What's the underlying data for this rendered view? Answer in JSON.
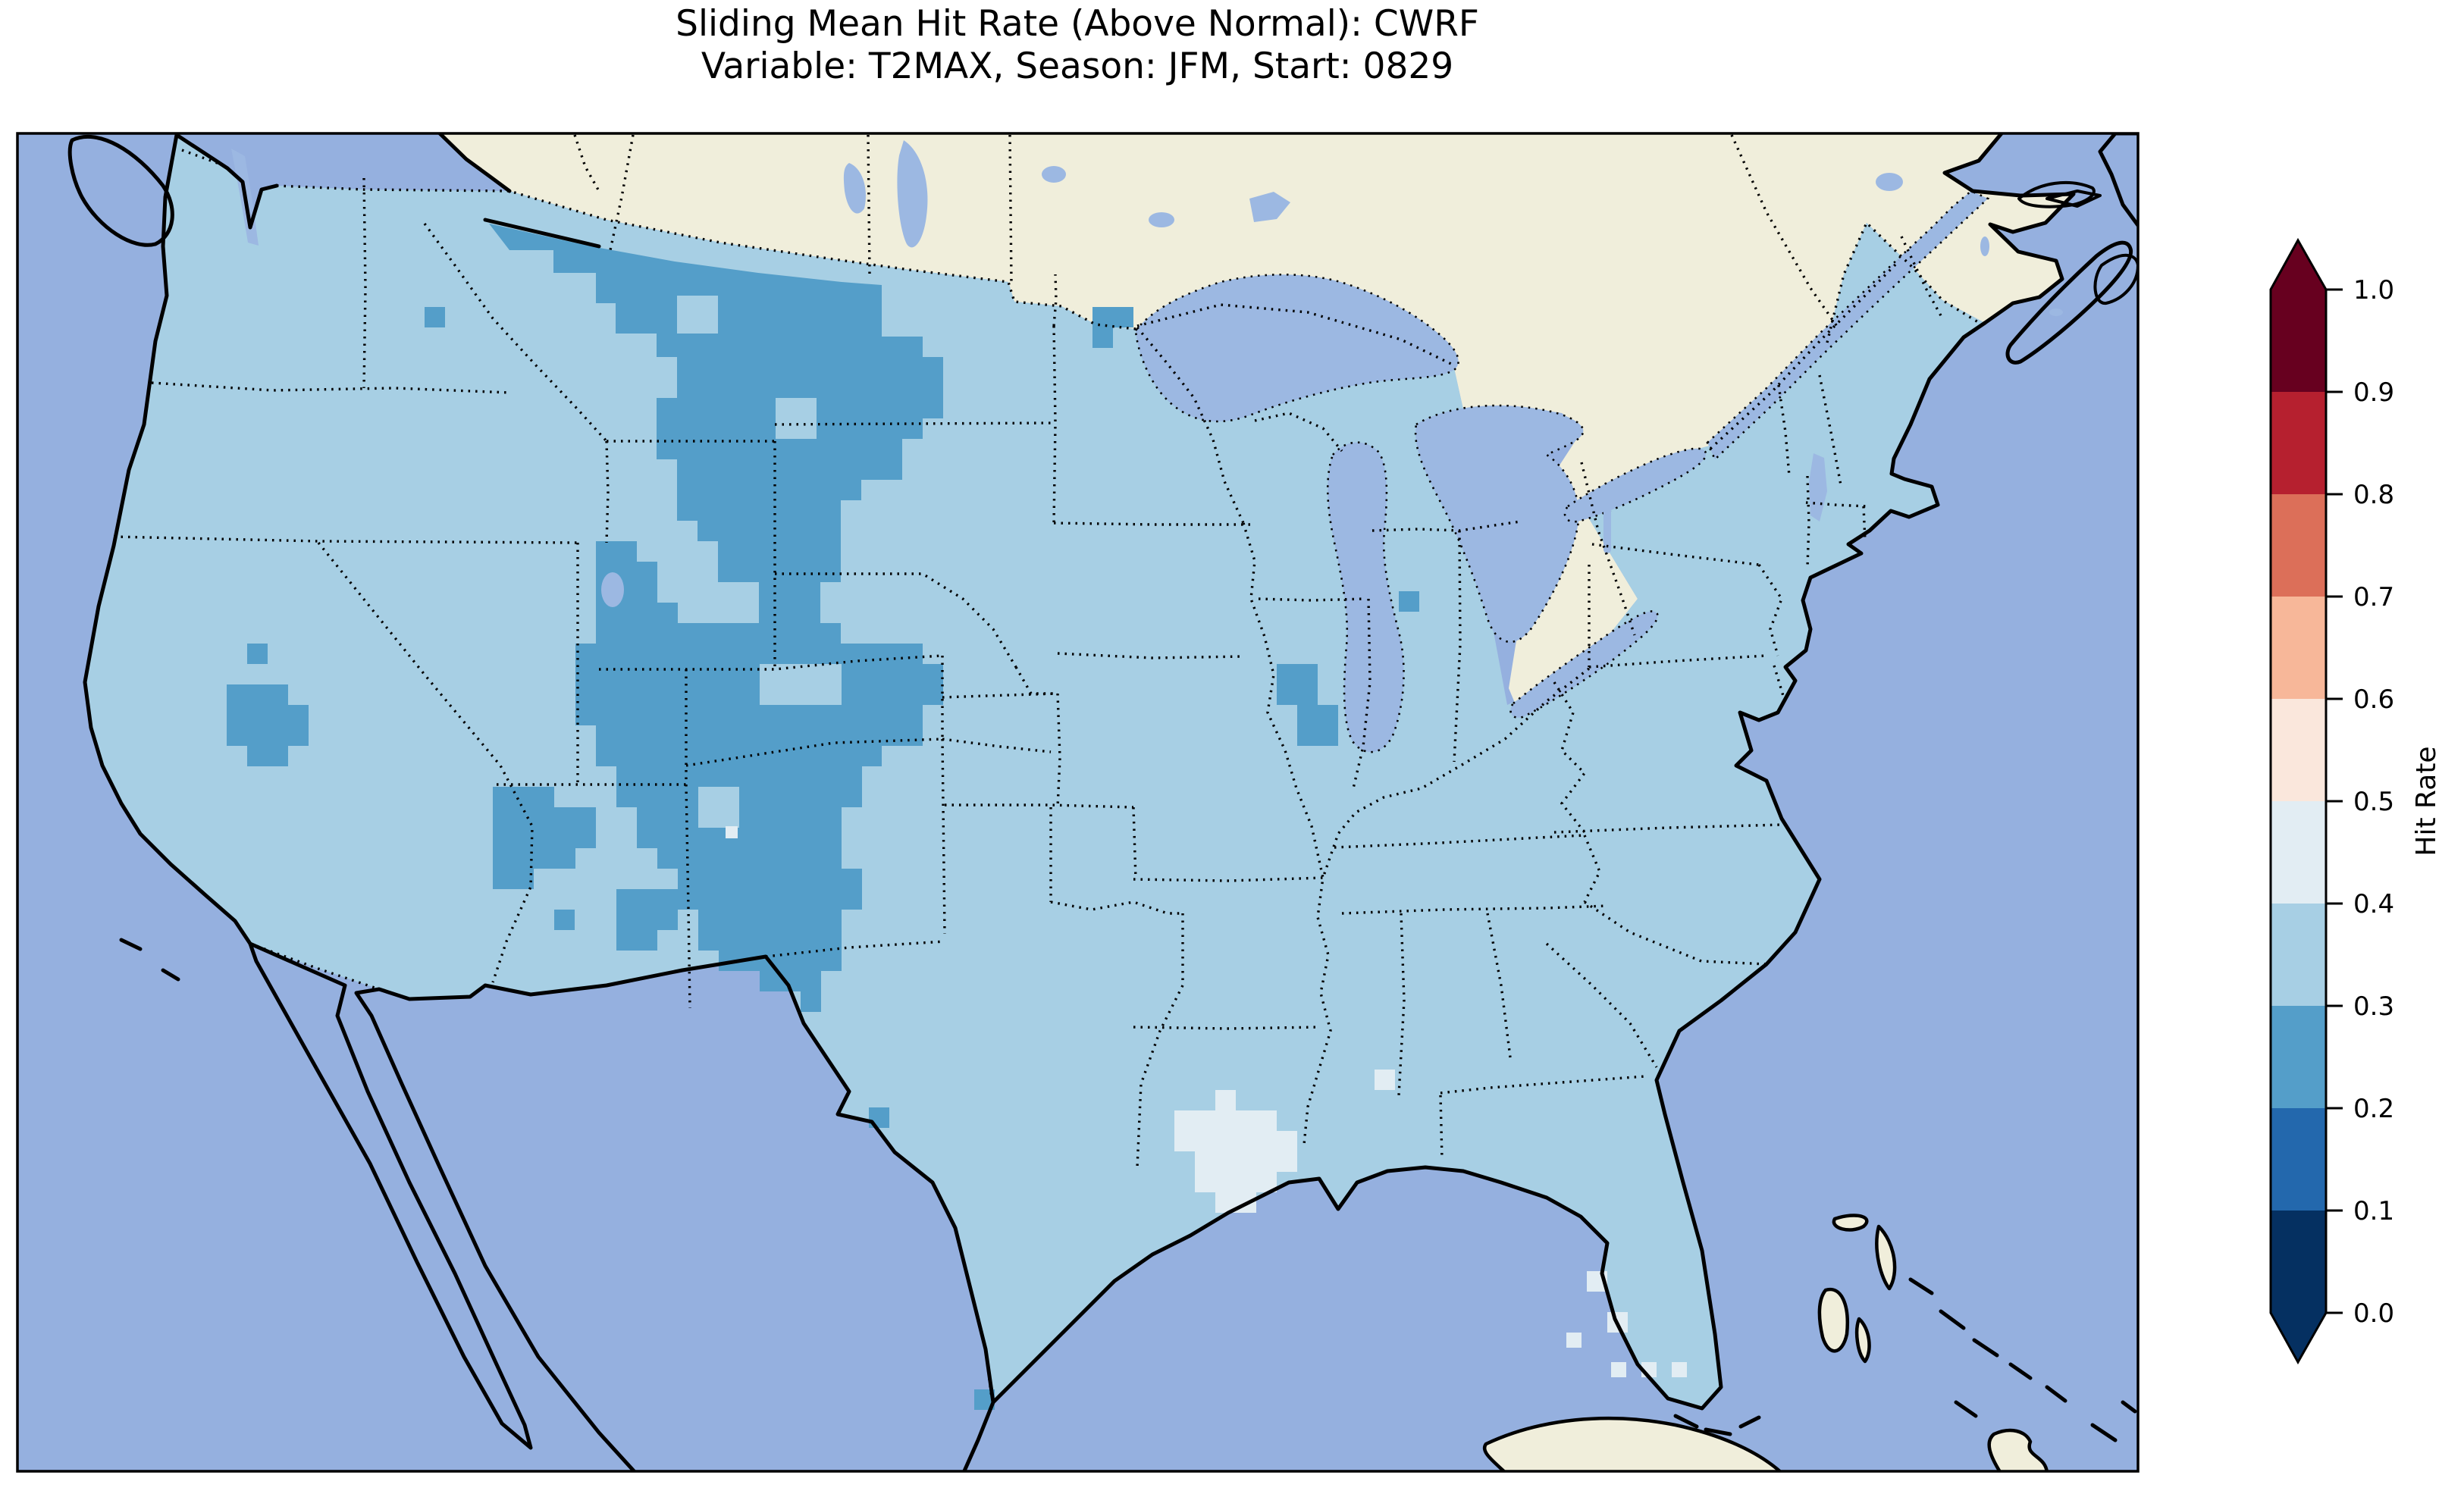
{
  "figure": {
    "title_line1": "Sliding Mean Hit Rate (Above Normal): CWRF",
    "title_line2": "Variable: T2MAX, Season: JFM, Start: 0829"
  },
  "colorbar": {
    "label": "Hit Rate",
    "ticks": [
      "0.0",
      "0.1",
      "0.2",
      "0.3",
      "0.4",
      "0.5",
      "0.6",
      "0.7",
      "0.8",
      "0.9",
      "1.0"
    ],
    "bins": [
      {
        "range": "0.0-0.1",
        "color": "#053061"
      },
      {
        "range": "0.1-0.2",
        "color": "#2368ad"
      },
      {
        "range": "0.2-0.3",
        "color": "#549ec9"
      },
      {
        "range": "0.3-0.4",
        "color": "#a7cfe4"
      },
      {
        "range": "0.4-0.5",
        "color": "#e2edf3"
      },
      {
        "range": "0.5-0.6",
        "color": "#fae7dc"
      },
      {
        "range": "0.6-0.7",
        "color": "#f7b799"
      },
      {
        "range": "0.7-0.8",
        "color": "#dc6f59"
      },
      {
        "range": "0.8-0.9",
        "color": "#b6202f"
      },
      {
        "range": "0.9-1.0",
        "color": "#67001f"
      }
    ],
    "extend": "both"
  },
  "palette": {
    "ocean": "#95b0df",
    "land": "#f0eedb",
    "lake": "#9cb8e2",
    "us_base": "#a7cfe4",
    "bin_low": "#549ec9",
    "bin_mid": "#e2edf3",
    "under": "#053061",
    "over": "#67001f",
    "frame": "#000000",
    "bg": "#ffffff"
  },
  "chart_data": {
    "type": "heatmap",
    "title": "Sliding Mean Hit Rate (Above Normal): CWRF",
    "subtitle": "Variable: T2MAX, Season: JFM, Start: 0829",
    "model": "CWRF",
    "variable": "T2MAX",
    "season": "JFM",
    "start": "0829",
    "metric": "Hit Rate (Above Normal)",
    "colorbar_label": "Hit Rate",
    "colorbar_ticks": [
      0.0,
      0.1,
      0.2,
      0.3,
      0.4,
      0.5,
      0.6,
      0.7,
      0.8,
      0.9,
      1.0
    ],
    "bin_edges": [
      0.0,
      0.1,
      0.2,
      0.3,
      0.4,
      0.5,
      0.6,
      0.7,
      0.8,
      0.9,
      1.0
    ],
    "bin_colors": [
      "#053061",
      "#2368ad",
      "#549ec9",
      "#a7cfe4",
      "#e2edf3",
      "#fae7dc",
      "#f7b799",
      "#dc6f59",
      "#b6202f",
      "#67001f"
    ],
    "colormap": "RdBu_r (10 discrete bins, extend both)",
    "legend_position": "right vertical colorbar",
    "region": "Contiguous United States, with southern Canada, northern Mexico, Gulf of Mexico, Bahamas and Cuba visible",
    "values_summary": [
      {
        "area": "Most of CONUS (Pacific states, Midwest, South, East Coast, Maine)",
        "hit_rate_bin": "0.3-0.4"
      },
      {
        "area": "Northern Rockies and High Plains: Montana, Wyoming, western Dakotas, Colorado, eastern Utah, northern New Mexico, eastern Arizona, central Nevada cluster",
        "hit_rate_bin": "0.2-0.3"
      },
      {
        "area": "Scattered low cells: west of Lake Superior, west-central Illinois, single cells in Ohio, west Texas, south Texas tip",
        "hit_rate_bin": "0.2-0.3"
      },
      {
        "area": "Southern Louisiana patch, small cells on Mississippi coast, southwest Florida, tiny spot in central Colorado",
        "hit_rate_bin": "0.4-0.5"
      }
    ],
    "grid_on": false
  }
}
